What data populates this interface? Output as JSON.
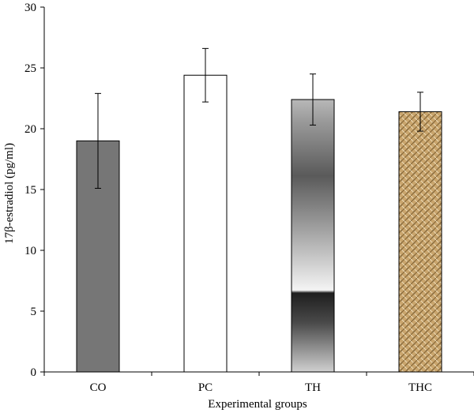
{
  "chart_data": {
    "type": "bar",
    "xlabel": "Experimental groups",
    "ylabel": "17β-estradiol (pg/ml)",
    "ylim": [
      0,
      30
    ],
    "yticks": [
      0,
      5,
      10,
      15,
      20,
      25,
      30
    ],
    "categories": [
      "CO",
      "PC",
      "TH",
      "THC"
    ],
    "values": [
      19.0,
      24.4,
      22.4,
      21.4
    ],
    "errors": [
      3.9,
      2.2,
      2.1,
      1.6
    ],
    "grid": false,
    "legend": "none",
    "bar_styles": [
      {
        "fill": "dark-gray",
        "color": "#767676"
      },
      {
        "fill": "white",
        "color": "#ffffff"
      },
      {
        "fill": "vertical-gradient",
        "color": "#555555"
      },
      {
        "fill": "woven-texture",
        "color": "#c9a56d"
      }
    ]
  }
}
